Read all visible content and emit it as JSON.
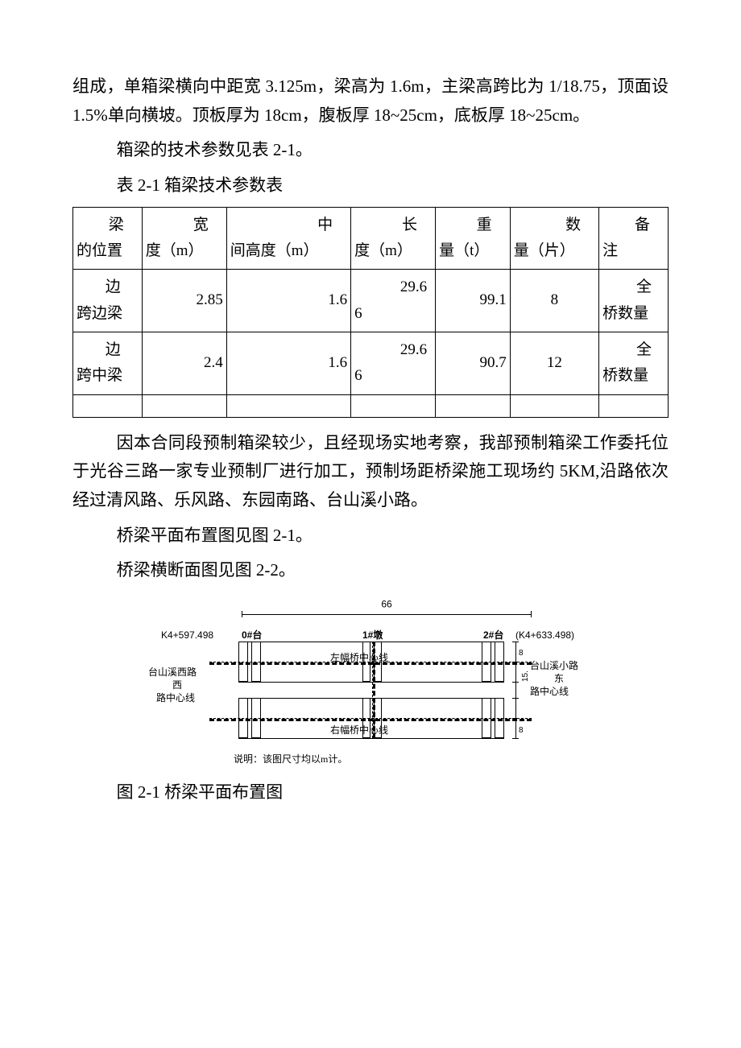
{
  "intro_para": "组成，单箱梁横向中距宽 3.125m，梁高为 1.6m，主梁高跨比为 1/18.75，顶面设 1.5%单向横坡。顶板厚为 18cm，腹板厚 18~25cm，底板厚 18~25cm。",
  "para_tech_ref": "箱梁的技术参数见表 2-1。",
  "table_caption": "表 2-1 箱梁技术参数表",
  "table": {
    "columns": [
      {
        "label_lead": "梁",
        "label_rest": "的位置"
      },
      {
        "label_lead": "宽",
        "label_rest": "度（m）"
      },
      {
        "label_lead": "中",
        "label_rest": "间高度（m）"
      },
      {
        "label_lead": "长",
        "label_rest": "度（m）"
      },
      {
        "label_lead": "重",
        "label_rest": "量（t）"
      },
      {
        "label_lead": "数",
        "label_rest": "量（片）"
      },
      {
        "label_lead": "备",
        "label_rest": "注"
      }
    ],
    "rows": [
      {
        "name_lead": "边",
        "name_rest": "跨边梁",
        "width": "2.85",
        "height": "1.6",
        "len_lead": "29.6",
        "len_rest": "6",
        "weight": "99.1",
        "qty": "8",
        "remark_lead": "全",
        "remark_rest": "桥数量"
      },
      {
        "name_lead": "边",
        "name_rest": "跨中梁",
        "width": "2.4",
        "height": "1.6",
        "len_lead": "29.6",
        "len_rest": "6",
        "weight": "90.7",
        "qty": "12",
        "remark_lead": "全",
        "remark_rest": "桥数量"
      }
    ]
  },
  "para_after_table": "因本合同段预制箱梁较少，且经现场实地考察，我部预制箱梁工作委托位于光谷三路一家专业预制厂进行加工，预制场距桥梁施工现场约 5KM,沿路依次经过清风路、乐风路、东园南路、台山溪小路。",
  "para_plan_ref": "桥梁平面布置图见图 2-1。",
  "para_section_ref": "桥梁横断面图见图 2-2。",
  "diagram": {
    "overall_length": "66",
    "left_station": "K4+597.498",
    "right_station": "(K4+633.498)",
    "left_abut": "0#台",
    "pier": "1#墩",
    "right_abut": "2#台",
    "left_center_label1": "台山溪西路",
    "left_center_label2": "西",
    "left_center_label3": "路中心线",
    "right_center_label1": "台山溪小路",
    "right_center_label2": "东",
    "right_center_label3": "路中心线",
    "left_axis": "左幅桥中心线",
    "right_axis": "右幅桥中心线",
    "side_dim_top": "8",
    "side_dim_mid": "15.",
    "side_dim_bot": "8",
    "note": "说明：该图尺寸均以m计。"
  },
  "figure_caption": "图 2-1 桥梁平面布置图",
  "colors": {
    "text": "#000000",
    "background": "#ffffff",
    "border": "#000000",
    "watermark": "#eeeeee"
  }
}
